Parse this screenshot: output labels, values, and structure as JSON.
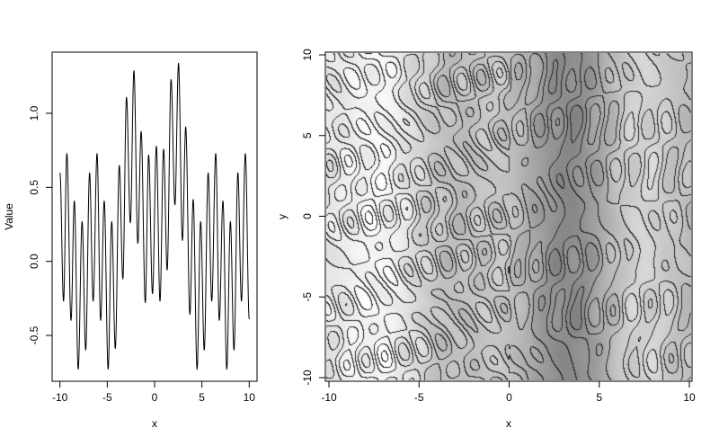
{
  "chart_data": [
    {
      "type": "line",
      "xlabel": "x",
      "ylabel": "Value",
      "xlim": [
        -10,
        10
      ],
      "ylim": [
        -0.8,
        1.4
      ],
      "xticks": [
        -10,
        -5,
        0,
        5,
        10
      ],
      "yticks": [
        -0.5,
        0.0,
        0.5,
        1.0
      ],
      "ytick_labels": [
        "-0.5",
        "0.0",
        "0.5",
        "1.0"
      ],
      "line_color": "#000000",
      "grid": false,
      "points_x": [
        -10,
        -9.62,
        -9.27,
        -8.83,
        -8.48,
        -8.07,
        -7.66,
        -7.28,
        -6.87,
        -6.49,
        -6.08,
        -5.7,
        -5.32,
        -4.91,
        -4.53,
        -4.15,
        -3.73,
        -3.35,
        -2.97,
        -2.56,
        -2.18,
        -1.77,
        -1.42,
        -0.98,
        -0.63,
        -0.22,
        0.19,
        0.57,
        0.95,
        1.33,
        1.74,
        2.15,
        2.53,
        2.94,
        3.29,
        3.73,
        4.08,
        4.49,
        4.87,
        5.25,
        5.66,
        6.04,
        6.46,
        6.84,
        7.22,
        7.63,
        8.01,
        8.39,
        8.8,
        9.18,
        9.59,
        10
      ],
      "points_y": [
        0.6,
        -0.27,
        0.73,
        -0.4,
        0.41,
        -0.73,
        0.27,
        -0.6,
        0.6,
        -0.27,
        0.73,
        -0.4,
        0.41,
        -0.73,
        0.27,
        -0.59,
        0.65,
        -0.12,
        1.11,
        0.26,
        1.29,
        0.12,
        0.88,
        -0.28,
        0.72,
        -0.22,
        0.78,
        -0.27,
        0.76,
        -0.06,
        1.23,
        0.38,
        1.34,
        0.14,
        0.91,
        -0.36,
        0.42,
        -0.73,
        0.27,
        -0.6,
        0.6,
        -0.27,
        0.73,
        -0.4,
        0.41,
        -0.73,
        0.27,
        -0.6,
        0.6,
        -0.27,
        0.73,
        -0.39
      ]
    },
    {
      "type": "heatmap",
      "xlabel": "x",
      "ylabel": "y",
      "xlim": [
        -10,
        10
      ],
      "ylim": [
        -10,
        10
      ],
      "xticks": [
        -10,
        -5,
        0,
        5,
        10
      ],
      "yticks": [
        -10,
        -5,
        0,
        5,
        10
      ],
      "colormap": "grayscale",
      "contour_levels": [
        -3,
        -2,
        -1,
        0,
        1,
        2
      ],
      "contour_color": "#222222",
      "grid": false
    }
  ]
}
